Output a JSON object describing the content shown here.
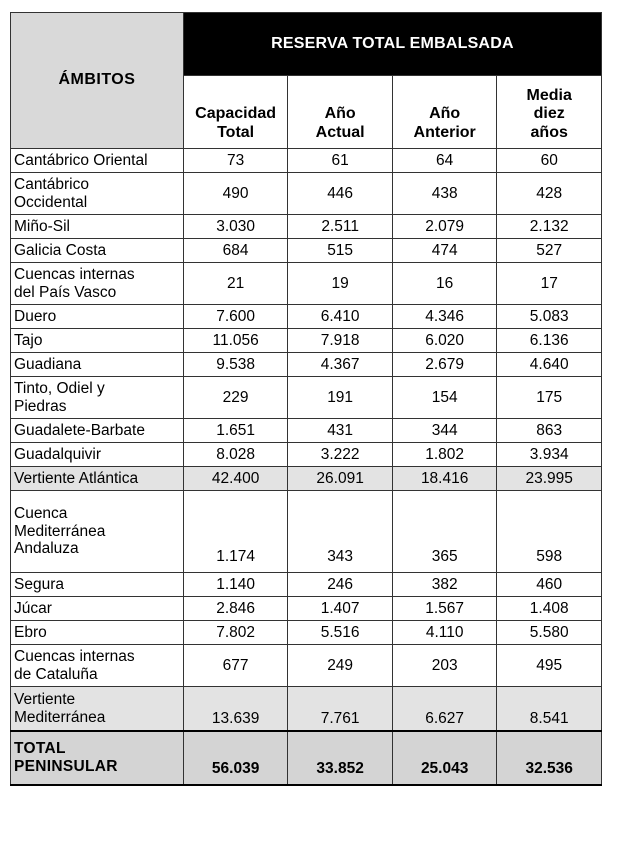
{
  "table": {
    "title": "RESERVA TOTAL EMBALSADA",
    "row_header": "ÁMBITOS",
    "columns": [
      "Capacidad\nTotal",
      "Año\nActual",
      "Año\nAnterior",
      "Media\ndiez\naños"
    ],
    "rows": [
      {
        "name": "Cantábrico Oriental",
        "values": [
          "73",
          "61",
          "64",
          "60"
        ],
        "kind": "normal"
      },
      {
        "name": "Cantábrico\nOccidental",
        "values": [
          "490",
          "446",
          "438",
          "428"
        ],
        "kind": "normal"
      },
      {
        "name": "Miño-Sil",
        "values": [
          "3.030",
          "2.511",
          "2.079",
          "2.132"
        ],
        "kind": "normal"
      },
      {
        "name": "Galicia Costa",
        "values": [
          "684",
          "515",
          "474",
          "527"
        ],
        "kind": "normal"
      },
      {
        "name": "Cuencas internas\ndel País Vasco",
        "values": [
          "21",
          "19",
          "16",
          "17"
        ],
        "kind": "normal"
      },
      {
        "name": "Duero",
        "values": [
          "7.600",
          "6.410",
          "4.346",
          "5.083"
        ],
        "kind": "normal"
      },
      {
        "name": "Tajo",
        "values": [
          "11.056",
          "7.918",
          "6.020",
          "6.136"
        ],
        "kind": "normal"
      },
      {
        "name": "Guadiana",
        "values": [
          "9.538",
          "4.367",
          "2.679",
          "4.640"
        ],
        "kind": "normal"
      },
      {
        "name": "Tinto, Odiel y\nPiedras",
        "values": [
          "229",
          "191",
          "154",
          "175"
        ],
        "kind": "normal"
      },
      {
        "name": "Guadalete-Barbate",
        "values": [
          "1.651",
          "431",
          "344",
          "863"
        ],
        "kind": "normal"
      },
      {
        "name": "Guadalquivir",
        "values": [
          "8.028",
          "3.222",
          "1.802",
          "3.934"
        ],
        "kind": "normal"
      },
      {
        "name": "Vertiente Atlántica",
        "values": [
          "42.400",
          "26.091",
          "18.416",
          "23.995"
        ],
        "kind": "subtotal"
      },
      {
        "name": "Cuenca\nMediterránea\nAndaluza",
        "values": [
          "1.174",
          "343",
          "365",
          "598"
        ],
        "kind": "normal"
      },
      {
        "name": "Segura",
        "values": [
          "1.140",
          "246",
          "382",
          "460"
        ],
        "kind": "normal"
      },
      {
        "name": "Júcar",
        "values": [
          "2.846",
          "1.407",
          "1.567",
          "1.408"
        ],
        "kind": "normal"
      },
      {
        "name": "Ebro",
        "values": [
          "7.802",
          "5.516",
          "4.110",
          "5.580"
        ],
        "kind": "normal"
      },
      {
        "name": "Cuencas internas\nde Cataluña",
        "values": [
          "677",
          "249",
          "203",
          "495"
        ],
        "kind": "normal"
      },
      {
        "name": "Vertiente\nMediterránea",
        "values": [
          "13.639",
          "7.761",
          "6.627",
          "8.541"
        ],
        "kind": "subtotal"
      },
      {
        "name": "TOTAL\nPENINSULAR",
        "values": [
          "56.039",
          "33.852",
          "25.043",
          "32.536"
        ],
        "kind": "total"
      }
    ],
    "colors": {
      "header_black": "#000000",
      "header_gray": "#d9d9d9",
      "subtotal_gray": "#e3e3e3",
      "total_gray": "#d4d4d4"
    }
  }
}
